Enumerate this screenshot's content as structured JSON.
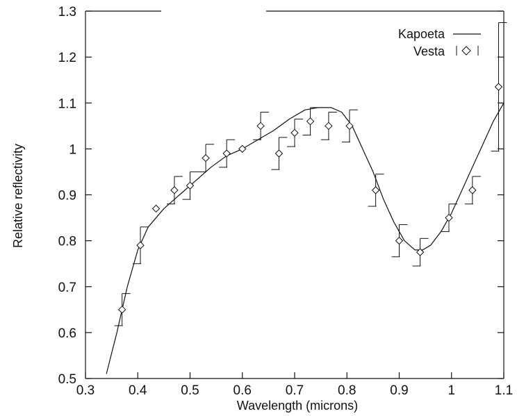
{
  "chart_data": {
    "type": "line",
    "title": "",
    "xlabel": "Wavelength (microns)",
    "ylabel": "Relative reflectivity",
    "xlim": [
      0.3,
      1.1
    ],
    "ylim": [
      0.5,
      1.3
    ],
    "x_ticks": [
      "0.3",
      "0.4",
      "0.5",
      "0.6",
      "0.7",
      "0.8",
      "0.9",
      "1",
      "1.1"
    ],
    "y_ticks": [
      "0.5",
      "0.6",
      "0.7",
      "0.8",
      "0.9",
      "1",
      "1.1",
      "1.2",
      "1.3"
    ],
    "grid": false,
    "legend_position": "top-right",
    "series": [
      {
        "name": "Kapoeta",
        "style": "line",
        "x": [
          0.34,
          0.36,
          0.38,
          0.4,
          0.42,
          0.45,
          0.48,
          0.51,
          0.54,
          0.57,
          0.6,
          0.63,
          0.66,
          0.69,
          0.72,
          0.745,
          0.77,
          0.79,
          0.81,
          0.83,
          0.85,
          0.87,
          0.89,
          0.91,
          0.93,
          0.945,
          0.96,
          0.98,
          1.0,
          1.02,
          1.04,
          1.06,
          1.08,
          1.1
        ],
        "y": [
          0.51,
          0.6,
          0.7,
          0.78,
          0.83,
          0.87,
          0.9,
          0.93,
          0.96,
          0.985,
          1.0,
          1.02,
          1.04,
          1.065,
          1.085,
          1.09,
          1.09,
          1.08,
          1.05,
          1.0,
          0.95,
          0.89,
          0.84,
          0.8,
          0.78,
          0.78,
          0.79,
          0.82,
          0.86,
          0.91,
          0.96,
          1.01,
          1.06,
          1.1
        ]
      },
      {
        "name": "Vesta",
        "style": "points-with-error-bars",
        "x": [
          0.37,
          0.405,
          0.435,
          0.47,
          0.5,
          0.53,
          0.57,
          0.6,
          0.635,
          0.67,
          0.7,
          0.73,
          0.765,
          0.805,
          0.855,
          0.9,
          0.94,
          0.995,
          1.04,
          1.09
        ],
        "y": [
          0.65,
          0.79,
          0.87,
          0.91,
          0.92,
          0.98,
          0.99,
          1.0,
          1.05,
          0.99,
          1.035,
          1.06,
          1.05,
          1.05,
          0.91,
          0.8,
          0.775,
          0.85,
          0.91,
          1.135
        ],
        "err": [
          0.035,
          0.04,
          0.0,
          0.03,
          0.03,
          0.03,
          0.03,
          0.0,
          0.03,
          0.035,
          0.03,
          0.03,
          0.03,
          0.035,
          0.035,
          0.035,
          0.03,
          0.03,
          0.03,
          0.14
        ]
      }
    ]
  }
}
